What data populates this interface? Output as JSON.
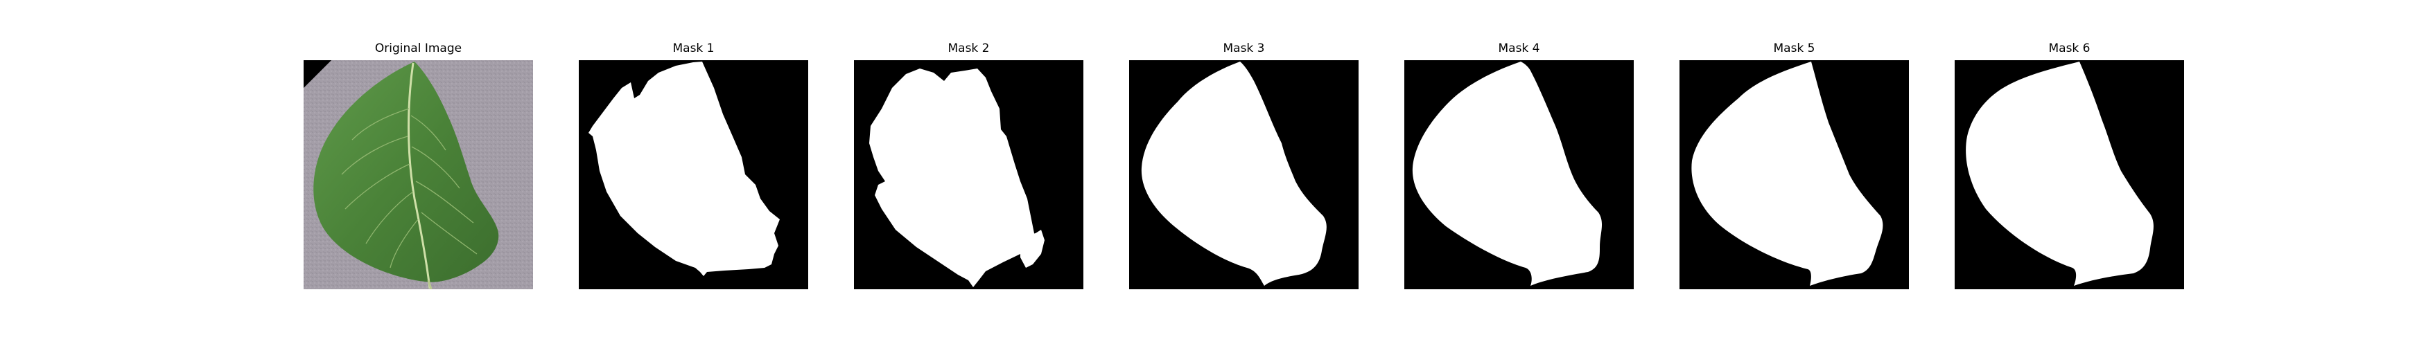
{
  "panels": [
    {
      "title": "Original Image"
    },
    {
      "title": "Mask 1"
    },
    {
      "title": "Mask 2"
    },
    {
      "title": "Mask 3"
    },
    {
      "title": "Mask 4"
    },
    {
      "title": "Mask 5"
    },
    {
      "title": "Mask 6"
    }
  ],
  "colors": {
    "background": "#ffffff",
    "mask_background": "#000000",
    "mask_foreground": "#ffffff",
    "leaf_green": "#4f8a3e",
    "surface_gray": "#9e98a4"
  }
}
